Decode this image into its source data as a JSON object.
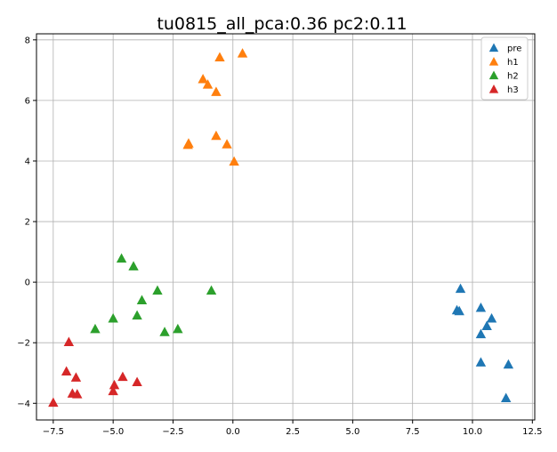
{
  "chart_data": {
    "type": "scatter",
    "title": "tu0815_all_pca:0.36 pc2:0.11",
    "xlabel": "",
    "ylabel": "",
    "xlim": [
      -8.2,
      12.6
    ],
    "ylim": [
      -4.55,
      8.2
    ],
    "xticks": [
      -7.5,
      -5.0,
      -2.5,
      0.0,
      2.5,
      5.0,
      7.5,
      10.0,
      12.5
    ],
    "xtick_labels": [
      "−7.5",
      "−5.0",
      "−2.5",
      "0.0",
      "2.5",
      "5.0",
      "7.5",
      "10.0",
      "12.5"
    ],
    "yticks": [
      -4,
      -2,
      0,
      2,
      4,
      6,
      8
    ],
    "ytick_labels": [
      "−4",
      "−2",
      "0",
      "2",
      "4",
      "6",
      "8"
    ],
    "grid": true,
    "marker": "triangle",
    "legend": {
      "position": "top-right"
    },
    "series": [
      {
        "name": "pre",
        "color": "#1f77b4",
        "points": [
          [
            9.5,
            -0.22
          ],
          [
            9.35,
            -0.93
          ],
          [
            9.45,
            -0.96
          ],
          [
            10.35,
            -0.85
          ],
          [
            10.8,
            -1.2
          ],
          [
            10.6,
            -1.45
          ],
          [
            10.35,
            -1.72
          ],
          [
            10.35,
            -2.65
          ],
          [
            11.5,
            -2.72
          ],
          [
            11.4,
            -3.83
          ]
        ]
      },
      {
        "name": "h1",
        "color": "#ff7f0e",
        "points": [
          [
            0.4,
            7.55
          ],
          [
            -0.55,
            7.42
          ],
          [
            -1.25,
            6.7
          ],
          [
            -1.05,
            6.52
          ],
          [
            -0.7,
            6.28
          ],
          [
            -1.85,
            4.58
          ],
          [
            -1.88,
            4.53
          ],
          [
            -0.7,
            4.83
          ],
          [
            -0.25,
            4.55
          ],
          [
            0.05,
            3.98
          ]
        ]
      },
      {
        "name": "h2",
        "color": "#2ca02c",
        "points": [
          [
            -4.65,
            0.78
          ],
          [
            -4.15,
            0.52
          ],
          [
            -3.15,
            -0.28
          ],
          [
            -0.9,
            -0.28
          ],
          [
            -3.8,
            -0.6
          ],
          [
            -5.0,
            -1.2
          ],
          [
            -4.0,
            -1.1
          ],
          [
            -5.75,
            -1.55
          ],
          [
            -2.85,
            -1.65
          ],
          [
            -2.3,
            -1.55
          ]
        ]
      },
      {
        "name": "h3",
        "color": "#d62728",
        "points": [
          [
            -6.85,
            -1.98
          ],
          [
            -6.95,
            -2.95
          ],
          [
            -6.55,
            -3.15
          ],
          [
            -4.6,
            -3.13
          ],
          [
            -4.0,
            -3.3
          ],
          [
            -4.95,
            -3.4
          ],
          [
            -5.0,
            -3.6
          ],
          [
            -6.7,
            -3.68
          ],
          [
            -6.5,
            -3.7
          ],
          [
            -7.5,
            -3.98
          ]
        ]
      }
    ]
  }
}
